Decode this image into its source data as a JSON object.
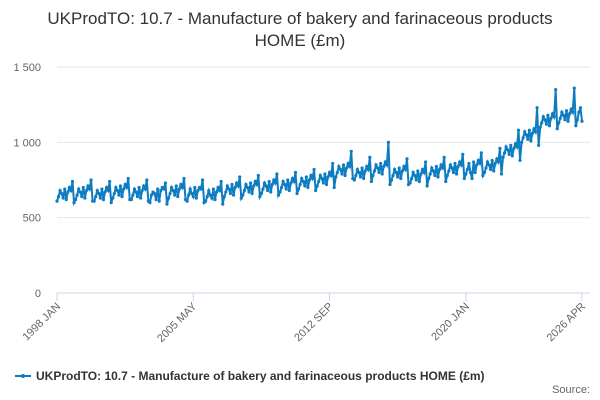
{
  "chart_data": {
    "type": "line",
    "title": "UKProdTO: 10.7 - Manufacture of bakery and farinaceous products HOME (£m)",
    "source": "Source:",
    "categories": [
      "1998 JAN",
      null,
      null,
      null,
      null,
      null,
      null,
      null,
      null,
      null,
      null,
      null,
      null,
      null,
      null,
      null,
      null,
      null,
      null,
      null,
      null,
      null,
      null,
      null,
      null,
      null,
      null,
      null,
      null,
      null,
      null,
      null,
      null,
      null,
      null,
      null,
      null,
      null,
      null,
      null,
      null,
      null,
      null,
      null,
      null,
      null,
      null,
      null,
      null,
      null,
      null,
      null,
      null,
      null,
      null,
      null,
      null,
      null,
      null,
      null,
      null,
      null,
      null,
      null,
      null,
      null,
      null,
      null,
      null,
      null,
      null,
      null,
      null,
      null,
      null,
      null,
      null,
      null,
      null,
      null,
      null,
      null,
      null,
      null,
      null,
      null,
      null,
      null,
      "2005 MAY",
      null,
      null,
      null,
      null,
      null,
      null,
      null,
      null,
      null,
      null,
      null,
      null,
      null,
      null,
      null,
      null,
      null,
      null,
      null,
      null,
      null,
      null,
      null,
      null,
      null,
      null,
      null,
      null,
      null,
      null,
      null,
      null,
      null,
      null,
      null,
      null,
      null,
      null,
      null,
      null,
      null,
      null,
      null,
      null,
      null,
      null,
      null,
      null,
      null,
      null,
      null,
      null,
      null,
      null,
      null,
      null,
      null,
      null,
      null,
      null,
      null,
      null,
      null,
      null,
      null,
      null,
      null,
      null,
      null,
      null,
      null,
      null,
      null,
      null,
      null,
      null,
      null,
      null,
      null,
      null,
      null,
      null,
      null,
      null,
      null,
      null,
      null,
      "2012 SEP",
      null,
      null,
      null,
      null,
      null,
      null,
      null,
      null,
      null,
      null,
      null,
      null,
      null,
      null,
      null,
      null,
      null,
      null,
      null,
      null,
      null,
      null,
      null,
      null,
      null,
      null,
      null,
      null,
      null,
      null,
      null,
      null,
      null,
      null,
      null,
      null,
      null,
      null,
      null,
      null,
      null,
      null,
      null,
      null,
      null,
      null,
      null,
      null,
      null,
      null,
      null,
      null,
      null,
      null,
      null,
      null,
      null,
      null,
      null,
      null,
      null,
      null,
      null,
      null,
      null,
      null,
      null,
      null,
      null,
      null,
      null,
      null,
      null,
      null,
      null,
      null,
      null,
      null,
      null,
      null,
      null,
      null,
      null,
      null,
      null,
      null,
      null,
      "2020 JAN",
      null,
      null,
      null,
      null,
      null,
      null,
      null,
      null,
      null,
      null,
      null,
      null,
      null,
      null,
      null,
      null,
      null,
      null,
      null,
      null,
      null,
      null,
      null,
      null,
      null,
      null,
      null,
      null,
      null,
      null,
      null,
      null,
      null,
      null,
      null,
      null,
      null,
      null,
      null,
      null,
      null,
      null,
      null,
      null,
      null,
      null,
      null,
      null,
      null,
      null,
      null,
      null,
      null,
      null,
      null,
      null,
      null,
      null,
      null,
      null,
      null,
      null,
      null,
      null,
      null,
      null,
      null,
      null,
      null,
      null,
      null,
      null,
      null,
      null,
      "2026 APR"
    ],
    "series": [
      {
        "name": "UKProdTO: 10.7 - Manufacture of bakery and farinaceous products HOME (£m)",
        "color": "#0e7cc0",
        "values": [
          610,
          640,
          680,
          660,
          630,
          690,
          620,
          670,
          700,
          680,
          740,
          600,
          620,
          650,
          690,
          670,
          640,
          700,
          630,
          680,
          710,
          690,
          750,
          610,
          610,
          640,
          680,
          660,
          630,
          690,
          620,
          670,
          700,
          680,
          740,
          600,
          630,
          660,
          700,
          680,
          650,
          710,
          640,
          690,
          720,
          700,
          760,
          620,
          620,
          650,
          690,
          670,
          640,
          700,
          630,
          680,
          710,
          690,
          750,
          610,
          600,
          650,
          670,
          660,
          620,
          690,
          610,
          680,
          700,
          690,
          730,
          590,
          630,
          660,
          700,
          680,
          650,
          710,
          640,
          690,
          720,
          700,
          760,
          620,
          610,
          650,
          690,
          660,
          640,
          700,
          630,
          680,
          700,
          690,
          750,
          600,
          610,
          640,
          680,
          650,
          630,
          690,
          620,
          670,
          700,
          680,
          740,
          590,
          640,
          670,
          710,
          690,
          660,
          720,
          650,
          700,
          730,
          710,
          770,
          630,
          650,
          680,
          720,
          700,
          670,
          730,
          660,
          710,
          740,
          720,
          780,
          640,
          660,
          690,
          730,
          710,
          680,
          740,
          670,
          720,
          750,
          730,
          790,
          650,
          670,
          700,
          740,
          720,
          690,
          750,
          680,
          730,
          760,
          740,
          800,
          660,
          690,
          720,
          760,
          740,
          710,
          770,
          700,
          750,
          780,
          760,
          820,
          680,
          710,
          740,
          780,
          760,
          730,
          790,
          720,
          770,
          800,
          780,
          860,
          700,
          770,
          800,
          840,
          820,
          790,
          850,
          780,
          830,
          860,
          840,
          940,
          760,
          750,
          780,
          820,
          800,
          770,
          830,
          760,
          810,
          840,
          820,
          900,
          740,
          780,
          810,
          850,
          830,
          800,
          860,
          790,
          840,
          870,
          850,
          1000,
          720,
          750,
          780,
          820,
          800,
          770,
          830,
          760,
          810,
          840,
          820,
          890,
          720,
          730,
          760,
          800,
          780,
          750,
          810,
          740,
          790,
          820,
          800,
          870,
          710,
          760,
          790,
          830,
          810,
          780,
          840,
          770,
          820,
          850,
          830,
          900,
          740,
          780,
          810,
          850,
          830,
          800,
          860,
          790,
          840,
          870,
          850,
          920,
          760,
          790,
          820,
          860,
          800,
          760,
          870,
          800,
          850,
          880,
          860,
          930,
          780,
          800,
          830,
          870,
          850,
          820,
          880,
          810,
          860,
          890,
          870,
          960,
          790,
          900,
          930,
          970,
          950,
          920,
          980,
          910,
          960,
          990,
          970,
          1080,
          880,
          1000,
          1030,
          1070,
          1050,
          1020,
          1080,
          1010,
          1060,
          1090,
          1070,
          1230,
          980,
          1100,
          1130,
          1170,
          1150,
          1120,
          1180,
          1110,
          1160,
          1190,
          1170,
          1350,
          1090,
          1130,
          1160,
          1200,
          1180,
          1150,
          1210,
          1140,
          1190,
          1220,
          1200,
          1360,
          1110,
          1150,
          1200,
          1230,
          1140
        ]
      }
    ],
    "ylim": [
      0,
      1500
    ],
    "yticks": [
      0,
      500,
      {
        "value": 1000,
        "label": "1 000"
      },
      {
        "value": 1500,
        "label": "1 500"
      }
    ],
    "grid": true,
    "legend": "bottom"
  }
}
